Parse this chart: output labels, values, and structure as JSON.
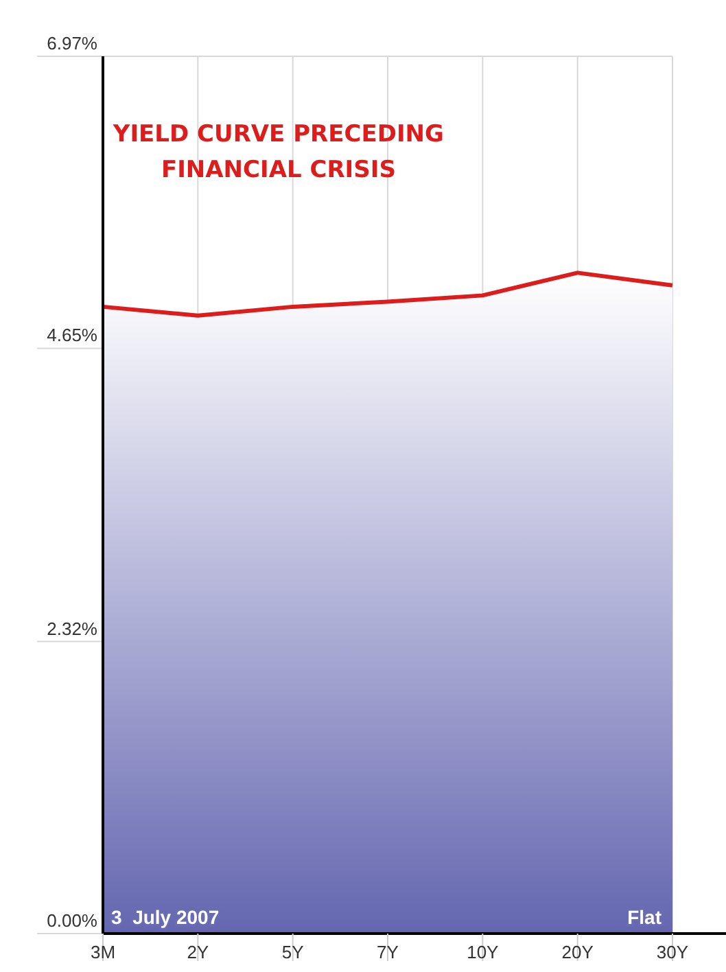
{
  "chart_data": {
    "type": "area",
    "title": "YIELD CURVE PRECEDING\nFINANCIAL CRISIS",
    "categories": [
      "3M",
      "2Y",
      "5Y",
      "7Y",
      "10Y",
      "20Y",
      "30Y"
    ],
    "series": [
      {
        "color": "#dd1c1c",
        "values": [
          4.98,
          4.91,
          4.98,
          5.02,
          5.07,
          5.25,
          5.15
        ]
      }
    ],
    "ylim": [
      0,
      6.97
    ],
    "yticks": [
      {
        "value": 0,
        "label": "0.00%"
      },
      {
        "value": 2.32,
        "label": "2.32%"
      },
      {
        "value": 4.65,
        "label": "4.65%"
      },
      {
        "value": 6.97,
        "label": "6.97%"
      }
    ],
    "grid": true,
    "marker": "none",
    "line_style": "solid",
    "annotations": [
      "3  July 2007",
      "Flat"
    ]
  }
}
